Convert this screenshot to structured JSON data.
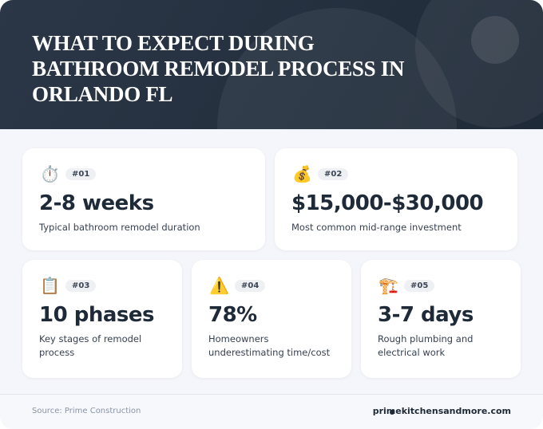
{
  "header": {
    "title": "WHAT TO EXPECT DURING BATHROOM REMODEL PROCESS IN ORLANDO FL"
  },
  "cards": [
    {
      "icon": "⏱️",
      "badge": "#01",
      "value": "2-8 weeks",
      "label": "Typical bathroom remodel duration"
    },
    {
      "icon": "💰",
      "badge": "#02",
      "value": "$15,000-$30,000",
      "label": "Most common mid-range investment"
    },
    {
      "icon": "📋",
      "badge": "#03",
      "value": "10 phases",
      "label": "Key stages of remodel process"
    },
    {
      "icon": "⚠️",
      "badge": "#04",
      "value": "78%",
      "label": "Homeowners underestimating time/cost"
    },
    {
      "icon": "🏗️",
      "badge": "#05",
      "value": "3-7 days",
      "label": "Rough plumbing and electrical work"
    }
  ],
  "footer": {
    "source": "Source: Prime Construction",
    "site": "primekitchensandmore.com"
  }
}
